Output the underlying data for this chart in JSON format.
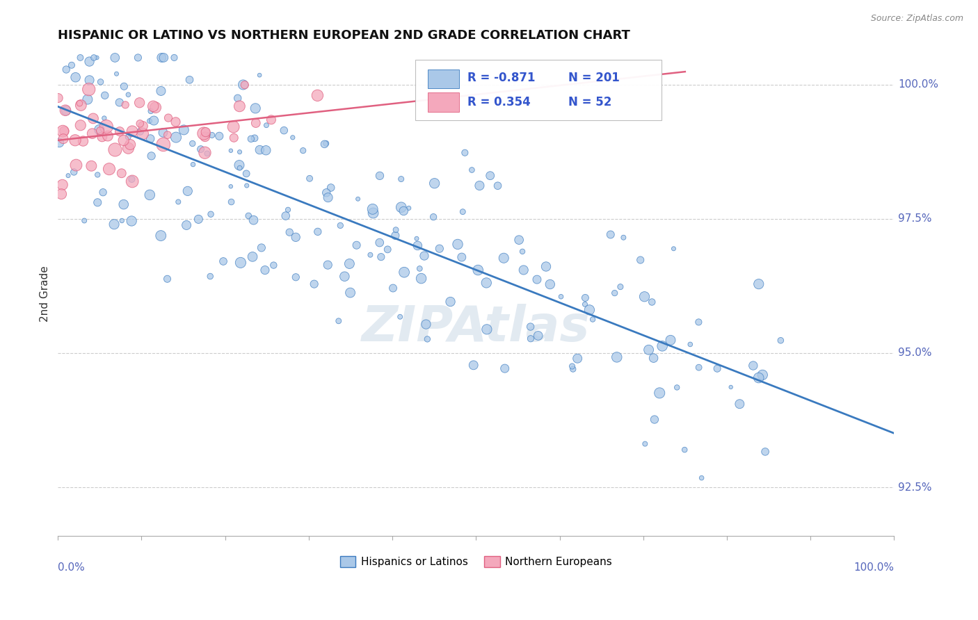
{
  "title": "HISPANIC OR LATINO VS NORTHERN EUROPEAN 2ND GRADE CORRELATION CHART",
  "source": "Source: ZipAtlas.com",
  "ylabel": "2nd Grade",
  "xlim": [
    0.0,
    1.0
  ],
  "ylim": [
    0.916,
    1.006
  ],
  "yticks": [
    0.925,
    0.95,
    0.975,
    1.0
  ],
  "ytick_labels": [
    "92.5%",
    "95.0%",
    "97.5%",
    "100.0%"
  ],
  "R_blue": -0.871,
  "N_blue": 201,
  "R_pink": 0.354,
  "N_pink": 52,
  "blue_color": "#aac8e8",
  "pink_color": "#f4a8bc",
  "blue_line_color": "#3a7abf",
  "pink_line_color": "#e06080",
  "legend_label_blue": "Hispanics or Latinos",
  "legend_label_pink": "Northern Europeans",
  "watermark": "ZIPAtlas",
  "background_color": "#ffffff",
  "grid_color": "#cccccc"
}
